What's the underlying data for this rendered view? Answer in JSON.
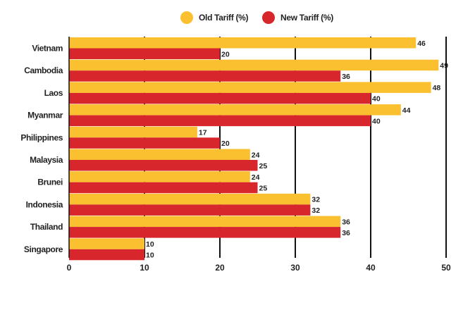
{
  "chart_data": {
    "type": "bar",
    "orientation": "horizontal",
    "categories": [
      "Vietnam",
      "Cambodia",
      "Laos",
      "Myanmar",
      "Philippines",
      "Malaysia",
      "Brunei",
      "Indonesia",
      "Thailand",
      "Singapore"
    ],
    "series": [
      {
        "name": "Old Tariff (%)",
        "color": "#FBC030",
        "values": [
          46,
          49,
          48,
          44,
          17,
          24,
          24,
          32,
          36,
          10
        ]
      },
      {
        "name": "New Tariff (%)",
        "color": "#D8262D",
        "values": [
          20,
          36,
          40,
          40,
          20,
          25,
          25,
          32,
          36,
          10
        ]
      }
    ],
    "x_ticks": [
      0,
      10,
      20,
      30,
      40,
      50
    ],
    "xlim": [
      0,
      50
    ],
    "grid": "vertical",
    "legend_position": "top-center"
  }
}
